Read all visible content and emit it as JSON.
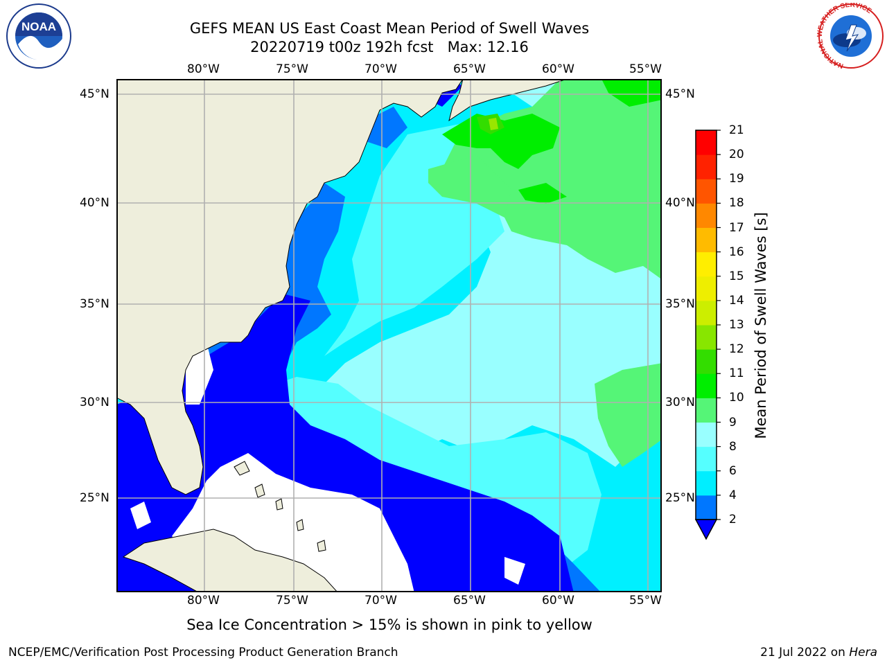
{
  "title": {
    "line1": "GEFS MEAN US East Coast Mean Period of Swell Waves",
    "line2": "20220719 t00z 192h fcst   Max: 12.16"
  },
  "map": {
    "lon_labels": [
      "80°W",
      "75°W",
      "70°W",
      "65°W",
      "60°W",
      "55°W"
    ],
    "lat_labels": [
      "45°N",
      "40°N",
      "35°N",
      "30°N",
      "25°N"
    ]
  },
  "colorbar": {
    "label": "Mean Period of Swell Waves [s]",
    "ticks": [
      "2",
      "4",
      "6",
      "8",
      "9",
      "10",
      "11",
      "12",
      "13",
      "14",
      "15",
      "16",
      "17",
      "18",
      "19",
      "20",
      "21"
    ],
    "colors": [
      "#0000ff",
      "#0077ff",
      "#00eeff",
      "#55ffff",
      "#99ffff",
      "#55f577",
      "#00ee00",
      "#33dd00",
      "#88e600",
      "#ccee00",
      "#eeee00",
      "#ffee00",
      "#ffbb00",
      "#ff8800",
      "#ff5500",
      "#ff2200",
      "#ff0000"
    ]
  },
  "colors": {
    "land": "#eeeedc",
    "grid": "#b0b0b0",
    "no_data": "#ffffff"
  },
  "notes": {
    "sea_ice": "Sea Ice Concentration > 15% is shown in pink to yellow"
  },
  "footer": {
    "left": "NCEP/EMC/Verification Post Processing Product Generation Branch",
    "date": "21 Jul 2022 on ",
    "host": "Hera"
  },
  "logos": {
    "left": "NOAA",
    "right_ring": "NATIONAL WEATHER SERVICE"
  }
}
